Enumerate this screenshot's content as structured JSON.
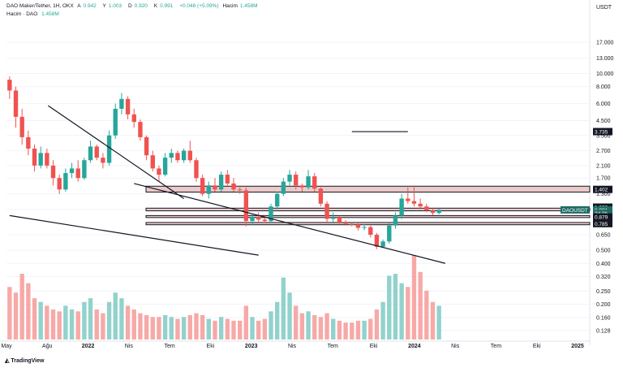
{
  "header": {
    "symbol": "DAO Maker/Tether, 1H, OKX",
    "ohlc": [
      {
        "label": "A",
        "value": "0.942"
      },
      {
        "label": "Y",
        "value": "1.003"
      },
      {
        "label": "D",
        "value": "0.920"
      },
      {
        "label": "K",
        "value": "0.991"
      }
    ],
    "change": "+0.048 (+5.09%)",
    "hacim_label": "Hacim",
    "hacim_value": "1.458M",
    "volume_label": "Hacim · DAO",
    "volume_value": "1.458M"
  },
  "brand": "TradingView",
  "colors": {
    "up": "#26a69a",
    "down": "#ef5350",
    "up_volume": "#92d2cc",
    "down_volume": "#f7a9a7",
    "zone_fill": "#e3b3b3",
    "line": "#131722",
    "grid": "#f0f3fa"
  },
  "chart_data": {
    "type": "candlestick",
    "y_scale": "log",
    "y_unit": "USDT",
    "ylim": [
      0.11,
      25
    ],
    "y_ticks": [
      "17.000",
      "13.000",
      "10.000",
      "8.000",
      "6.000",
      "4.500",
      "3.500",
      "2.700",
      "2.100",
      "1.700",
      "1.300",
      "1.000",
      "0.650",
      "0.500",
      "0.400",
      "0.320",
      "0.250",
      "0.200",
      "0.160",
      "0.128"
    ],
    "x_ticks": [
      "May",
      "Ağu",
      "2022",
      "Nis",
      "Tem",
      "Eki",
      "2023",
      "Nis",
      "Tem",
      "Eki",
      "2024",
      "Nis",
      "Tem",
      "Eki",
      "2025"
    ],
    "price_labels": [
      {
        "text": "3.735",
        "value": 3.735,
        "style": "dark"
      },
      {
        "text": "1.402",
        "value": 1.402,
        "style": "dark"
      },
      {
        "text": "1.038",
        "value": 1.038,
        "style": "dark"
      },
      {
        "text": "DAOUSDT",
        "value": 0.991,
        "style": "teal"
      },
      {
        "text": "0.991",
        "value": 0.991,
        "style": "teal"
      },
      {
        "text": "3d 8h",
        "value": 0.935,
        "style": "teal"
      },
      {
        "text": "0.879",
        "value": 0.879,
        "style": "dark"
      },
      {
        "text": "0.785",
        "value": 0.785,
        "style": "dark"
      }
    ],
    "candles": [
      {
        "o": 9.0,
        "h": 9.5,
        "l": 6.5,
        "c": 7.5
      },
      {
        "o": 7.5,
        "h": 8.0,
        "l": 4.0,
        "c": 4.8
      },
      {
        "o": 4.8,
        "h": 5.5,
        "l": 3.0,
        "c": 3.4
      },
      {
        "o": 3.4,
        "h": 3.8,
        "l": 2.5,
        "c": 2.8
      },
      {
        "o": 2.8,
        "h": 3.0,
        "l": 1.9,
        "c": 2.1
      },
      {
        "o": 2.1,
        "h": 2.9,
        "l": 2.0,
        "c": 2.6
      },
      {
        "o": 2.6,
        "h": 2.8,
        "l": 2.0,
        "c": 2.1
      },
      {
        "o": 2.1,
        "h": 2.3,
        "l": 1.5,
        "c": 1.7
      },
      {
        "o": 1.7,
        "h": 1.8,
        "l": 1.3,
        "c": 1.4
      },
      {
        "o": 1.4,
        "h": 2.0,
        "l": 1.35,
        "c": 1.85
      },
      {
        "o": 1.85,
        "h": 2.2,
        "l": 1.7,
        "c": 2.0
      },
      {
        "o": 2.0,
        "h": 2.3,
        "l": 1.6,
        "c": 1.7
      },
      {
        "o": 1.7,
        "h": 2.4,
        "l": 1.65,
        "c": 2.3
      },
      {
        "o": 2.3,
        "h": 3.2,
        "l": 2.2,
        "c": 2.9
      },
      {
        "o": 2.9,
        "h": 3.0,
        "l": 2.3,
        "c": 2.4
      },
      {
        "o": 2.4,
        "h": 2.6,
        "l": 2.0,
        "c": 2.2
      },
      {
        "o": 2.2,
        "h": 3.8,
        "l": 2.1,
        "c": 3.5
      },
      {
        "o": 3.5,
        "h": 6.0,
        "l": 3.3,
        "c": 5.5
      },
      {
        "o": 5.5,
        "h": 7.2,
        "l": 5.0,
        "c": 6.5
      },
      {
        "o": 6.5,
        "h": 6.8,
        "l": 4.6,
        "c": 5.0
      },
      {
        "o": 5.0,
        "h": 5.5,
        "l": 4.0,
        "c": 4.4
      },
      {
        "o": 4.4,
        "h": 4.6,
        "l": 3.2,
        "c": 3.4
      },
      {
        "o": 3.4,
        "h": 3.5,
        "l": 2.3,
        "c": 2.5
      },
      {
        "o": 2.5,
        "h": 2.7,
        "l": 1.9,
        "c": 2.0
      },
      {
        "o": 2.0,
        "h": 2.1,
        "l": 1.6,
        "c": 1.8
      },
      {
        "o": 1.8,
        "h": 2.6,
        "l": 1.75,
        "c": 2.4
      },
      {
        "o": 2.4,
        "h": 2.8,
        "l": 2.2,
        "c": 2.6
      },
      {
        "o": 2.6,
        "h": 2.7,
        "l": 2.2,
        "c": 2.3
      },
      {
        "o": 2.3,
        "h": 2.8,
        "l": 2.2,
        "c": 2.7
      },
      {
        "o": 2.7,
        "h": 3.2,
        "l": 2.2,
        "c": 2.3
      },
      {
        "o": 2.3,
        "h": 2.4,
        "l": 1.6,
        "c": 1.7
      },
      {
        "o": 1.7,
        "h": 1.8,
        "l": 1.25,
        "c": 1.3
      },
      {
        "o": 1.3,
        "h": 1.6,
        "l": 1.2,
        "c": 1.5
      },
      {
        "o": 1.5,
        "h": 1.7,
        "l": 1.35,
        "c": 1.4
      },
      {
        "o": 1.4,
        "h": 1.9,
        "l": 1.35,
        "c": 1.8
      },
      {
        "o": 1.8,
        "h": 1.95,
        "l": 1.5,
        "c": 1.55
      },
      {
        "o": 1.55,
        "h": 1.7,
        "l": 1.35,
        "c": 1.4
      },
      {
        "o": 1.4,
        "h": 1.5,
        "l": 1.3,
        "c": 1.38
      },
      {
        "o": 1.38,
        "h": 1.45,
        "l": 0.75,
        "c": 0.82
      },
      {
        "o": 0.82,
        "h": 0.92,
        "l": 0.76,
        "c": 0.88
      },
      {
        "o": 0.88,
        "h": 0.95,
        "l": 0.8,
        "c": 0.84
      },
      {
        "o": 0.84,
        "h": 0.9,
        "l": 0.79,
        "c": 0.82
      },
      {
        "o": 0.82,
        "h": 1.1,
        "l": 0.8,
        "c": 1.05
      },
      {
        "o": 1.05,
        "h": 1.35,
        "l": 1.0,
        "c": 1.3
      },
      {
        "o": 1.3,
        "h": 1.7,
        "l": 1.25,
        "c": 1.6
      },
      {
        "o": 1.6,
        "h": 1.95,
        "l": 1.5,
        "c": 1.8
      },
      {
        "o": 1.8,
        "h": 1.9,
        "l": 1.4,
        "c": 1.5
      },
      {
        "o": 1.5,
        "h": 1.55,
        "l": 1.35,
        "c": 1.45
      },
      {
        "o": 1.45,
        "h": 1.95,
        "l": 1.4,
        "c": 1.75
      },
      {
        "o": 1.75,
        "h": 1.85,
        "l": 1.35,
        "c": 1.42
      },
      {
        "o": 1.42,
        "h": 1.45,
        "l": 1.05,
        "c": 1.1
      },
      {
        "o": 1.1,
        "h": 1.15,
        "l": 0.8,
        "c": 0.85
      },
      {
        "o": 0.85,
        "h": 0.95,
        "l": 0.8,
        "c": 0.87
      },
      {
        "o": 0.87,
        "h": 0.9,
        "l": 0.78,
        "c": 0.8
      },
      {
        "o": 0.8,
        "h": 0.83,
        "l": 0.76,
        "c": 0.78
      },
      {
        "o": 0.78,
        "h": 0.8,
        "l": 0.75,
        "c": 0.77
      },
      {
        "o": 0.77,
        "h": 0.79,
        "l": 0.7,
        "c": 0.73
      },
      {
        "o": 0.73,
        "h": 0.78,
        "l": 0.7,
        "c": 0.74
      },
      {
        "o": 0.74,
        "h": 0.76,
        "l": 0.62,
        "c": 0.65
      },
      {
        "o": 0.65,
        "h": 0.67,
        "l": 0.51,
        "c": 0.53
      },
      {
        "o": 0.53,
        "h": 0.6,
        "l": 0.52,
        "c": 0.58
      },
      {
        "o": 0.58,
        "h": 0.8,
        "l": 0.56,
        "c": 0.76
      },
      {
        "o": 0.76,
        "h": 0.95,
        "l": 0.72,
        "c": 0.9
      },
      {
        "o": 0.9,
        "h": 1.3,
        "l": 0.85,
        "c": 1.2
      },
      {
        "o": 1.2,
        "h": 1.45,
        "l": 1.1,
        "c": 1.15
      },
      {
        "o": 1.15,
        "h": 1.5,
        "l": 1.05,
        "c": 1.1
      },
      {
        "o": 1.1,
        "h": 1.2,
        "l": 1.0,
        "c": 1.05
      },
      {
        "o": 1.05,
        "h": 1.1,
        "l": 0.95,
        "c": 0.98
      },
      {
        "o": 0.98,
        "h": 1.02,
        "l": 0.91,
        "c": 0.94
      },
      {
        "o": 0.94,
        "h": 1.003,
        "l": 0.92,
        "c": 0.991
      }
    ],
    "volume": [
      0.28,
      0.25,
      0.35,
      0.3,
      0.22,
      0.2,
      0.18,
      0.16,
      0.15,
      0.18,
      0.16,
      0.15,
      0.2,
      0.22,
      0.16,
      0.14,
      0.2,
      0.25,
      0.22,
      0.18,
      0.16,
      0.14,
      0.13,
      0.12,
      0.12,
      0.13,
      0.12,
      0.11,
      0.12,
      0.13,
      0.14,
      0.13,
      0.11,
      0.1,
      0.12,
      0.11,
      0.1,
      0.1,
      0.18,
      0.12,
      0.1,
      0.11,
      0.15,
      0.2,
      0.33,
      0.25,
      0.18,
      0.14,
      0.15,
      0.13,
      0.12,
      0.14,
      0.11,
      0.1,
      0.09,
      0.09,
      0.1,
      0.1,
      0.11,
      0.16,
      0.2,
      0.34,
      0.35,
      0.3,
      0.28,
      0.45,
      0.36,
      0.26,
      0.2,
      0.18
    ],
    "zones": [
      {
        "top": 1.48,
        "bottom": 1.34
      },
      {
        "top": 1.02,
        "bottom": 0.975
      },
      {
        "top": 0.9,
        "bottom": 0.87
      },
      {
        "top": 0.8,
        "bottom": 0.77
      }
    ],
    "trendlines": [
      {
        "x1": 6.2,
        "y1": 5.8,
        "x2": 28,
        "y2": 1.2
      },
      {
        "x1": 20,
        "y1": 1.55,
        "x2": 70,
        "y2": 0.4
      },
      {
        "x1": 0,
        "y1": 0.9,
        "x2": 40,
        "y2": 0.46
      },
      {
        "x1": 55,
        "y1": 3.735,
        "x2": 64,
        "y2": 3.735
      }
    ]
  }
}
